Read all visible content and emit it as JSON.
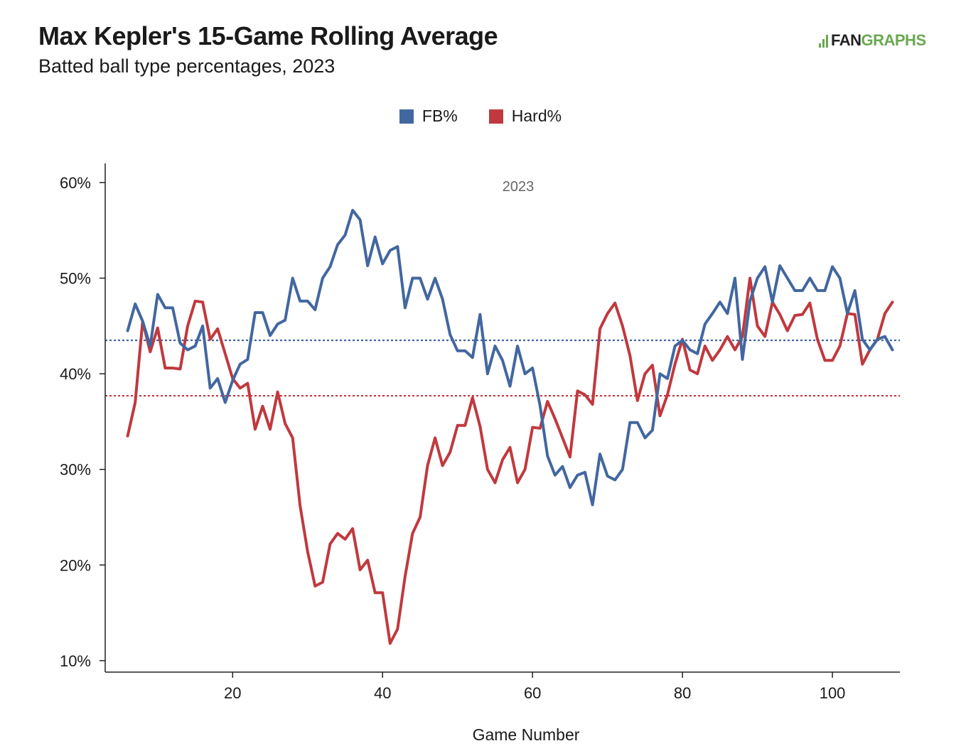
{
  "header": {
    "title": "Max Kepler's 15-Game Rolling Average",
    "subtitle": "Batted ball type percentages, 2023"
  },
  "logo": {
    "part1": "FAN",
    "part2": "GRAPHS",
    "color": "#6aa84f"
  },
  "chart_data": {
    "type": "line",
    "title": "Max Kepler's 15-Game Rolling Average",
    "subtitle": "Batted ball type percentages, 2023",
    "panel_label": "2023",
    "xlabel": "Game Number",
    "ylabel": "",
    "xlim": [
      3,
      109
    ],
    "ylim": [
      8.8,
      62
    ],
    "x_ticks": [
      20,
      40,
      60,
      80,
      100
    ],
    "y_ticks": [
      10,
      20,
      30,
      40,
      50,
      60
    ],
    "y_tick_labels": [
      "10%",
      "20%",
      "30%",
      "40%",
      "50%",
      "60%"
    ],
    "legend_position": "top-center",
    "grid": false,
    "series": [
      {
        "name": "FB%",
        "color": "#4267a0",
        "average": 43.5,
        "x": [
          6,
          7,
          8,
          9,
          10,
          11,
          12,
          13,
          14,
          15,
          16,
          17,
          18,
          19,
          20,
          21,
          22,
          23,
          24,
          25,
          26,
          27,
          28,
          29,
          30,
          31,
          32,
          33,
          34,
          35,
          36,
          37,
          38,
          39,
          40,
          41,
          42,
          43,
          44,
          45,
          46,
          47,
          48,
          49,
          50,
          51,
          52,
          53,
          54,
          55,
          56,
          57,
          58,
          59,
          60,
          61,
          62,
          63,
          64,
          65,
          66,
          67,
          68,
          69,
          70,
          71,
          72,
          73,
          74,
          75,
          76,
          77,
          78,
          79,
          80,
          81,
          82,
          83,
          84,
          85,
          86,
          87,
          88,
          89,
          90,
          91,
          92,
          93,
          94,
          95,
          96,
          97,
          98,
          99,
          100,
          101,
          102,
          103,
          104,
          105,
          106,
          107,
          108
        ],
        "y": [
          44.5,
          47.3,
          45.5,
          42.9,
          48.3,
          46.9,
          46.9,
          43.2,
          42.5,
          42.9,
          45.0,
          38.5,
          39.5,
          37.0,
          39.3,
          41.0,
          41.5,
          46.4,
          46.4,
          44.0,
          45.2,
          45.6,
          50.0,
          47.6,
          47.6,
          46.7,
          50.0,
          51.2,
          53.5,
          54.5,
          57.1,
          56.1,
          51.3,
          54.3,
          51.5,
          52.9,
          53.3,
          46.9,
          50.0,
          50.0,
          47.8,
          50.0,
          47.8,
          44.1,
          42.4,
          42.4,
          41.7,
          46.2,
          40.0,
          42.9,
          41.4,
          38.7,
          42.9,
          40.0,
          40.6,
          36.7,
          31.4,
          29.4,
          30.3,
          28.1,
          29.4,
          29.7,
          26.3,
          31.6,
          29.3,
          28.9,
          30.0,
          34.9,
          34.9,
          33.3,
          34.1,
          40.0,
          39.5,
          42.9,
          43.5,
          42.5,
          42.1,
          45.2,
          46.3,
          47.5,
          46.3,
          50.0,
          41.5,
          47.6,
          50.0,
          51.2,
          47.5,
          51.3,
          50.0,
          48.7,
          48.7,
          50.0,
          48.7,
          48.7,
          51.2,
          50.0,
          46.3,
          48.7,
          43.6,
          42.5,
          43.6,
          43.9,
          42.5
        ]
      },
      {
        "name": "Hard%",
        "color": "#c0393e",
        "average": 37.7,
        "x": [
          6,
          7,
          8,
          9,
          10,
          11,
          12,
          13,
          14,
          15,
          16,
          17,
          18,
          19,
          20,
          21,
          22,
          23,
          24,
          25,
          26,
          27,
          28,
          29,
          30,
          31,
          32,
          33,
          34,
          35,
          36,
          37,
          38,
          39,
          40,
          41,
          42,
          43,
          44,
          45,
          46,
          47,
          48,
          49,
          50,
          51,
          52,
          53,
          54,
          55,
          56,
          57,
          58,
          59,
          60,
          61,
          62,
          63,
          64,
          65,
          66,
          67,
          68,
          69,
          70,
          71,
          72,
          73,
          74,
          75,
          76,
          77,
          78,
          79,
          80,
          81,
          82,
          83,
          84,
          85,
          86,
          87,
          88,
          89,
          90,
          91,
          92,
          93,
          94,
          95,
          96,
          97,
          98,
          99,
          100,
          101,
          102,
          103,
          104,
          105,
          106,
          107,
          108
        ],
        "y": [
          33.5,
          37.0,
          45.5,
          42.3,
          44.8,
          40.6,
          40.6,
          40.5,
          45.0,
          47.6,
          47.5,
          43.6,
          44.7,
          42.1,
          39.5,
          38.5,
          39.0,
          34.2,
          36.6,
          34.2,
          38.1,
          34.8,
          33.3,
          26.2,
          21.4,
          17.8,
          18.2,
          22.2,
          23.3,
          22.7,
          23.8,
          19.5,
          20.5,
          17.1,
          17.1,
          11.8,
          13.3,
          18.8,
          23.3,
          25.0,
          30.4,
          33.3,
          30.4,
          31.8,
          34.6,
          34.6,
          37.5,
          34.5,
          30.0,
          28.6,
          31.0,
          32.3,
          28.6,
          30.0,
          34.4,
          34.3,
          37.1,
          35.3,
          33.3,
          31.3,
          38.2,
          37.8,
          36.8,
          44.7,
          46.3,
          47.4,
          45.0,
          41.9,
          37.2,
          40.0,
          40.9,
          35.6,
          37.8,
          41.0,
          43.6,
          40.4,
          40.0,
          42.9,
          41.4,
          42.5,
          43.9,
          42.5,
          43.9,
          50.0,
          45.0,
          43.9,
          47.5,
          46.2,
          44.5,
          46.1,
          46.2,
          47.4,
          43.6,
          41.4,
          41.4,
          42.9,
          46.3,
          46.2,
          41.0,
          42.5,
          43.6,
          46.3,
          47.5
        ]
      }
    ]
  }
}
